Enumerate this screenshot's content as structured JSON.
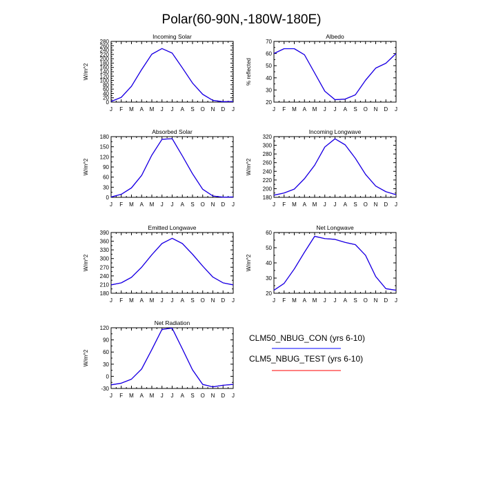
{
  "title": "Polar(60-90N,-180W-180E)",
  "colors": {
    "series_con": "#0000ff",
    "series_test": "#ff0000",
    "frame": "#000000"
  },
  "legend": {
    "entries": [
      {
        "label": "CLM50_NBUG_CON (yrs 6-10)",
        "color": "#0000ff"
      },
      {
        "label": "CLM5_NBUG_TEST (yrs 6-10)",
        "color": "#ff0000"
      }
    ]
  },
  "chart_data": [
    {
      "type": "line",
      "title": "Incoming Solar",
      "ylabel": "W/m^2",
      "categories": [
        "J",
        "F",
        "M",
        "A",
        "M",
        "J",
        "J",
        "A",
        "S",
        "O",
        "N",
        "D",
        "J"
      ],
      "yticks": [
        0,
        20,
        40,
        60,
        80,
        100,
        120,
        140,
        160,
        180,
        200,
        220,
        240,
        260,
        280
      ],
      "ylim": [
        0,
        280
      ],
      "series": [
        {
          "name": "CLM50_NBUG_CON (yrs 6-10)",
          "values": [
            3,
            22,
            73,
            150,
            221,
            247,
            226,
            158,
            88,
            36,
            8,
            2,
            3
          ]
        },
        {
          "name": "CLM5_NBUG_TEST (yrs 6-10)",
          "values": [
            3,
            22,
            73,
            150,
            221,
            247,
            226,
            158,
            88,
            36,
            8,
            2,
            3
          ]
        }
      ]
    },
    {
      "type": "line",
      "title": "Albedo",
      "ylabel": "% reflected",
      "categories": [
        "J",
        "F",
        "M",
        "A",
        "M",
        "J",
        "J",
        "A",
        "S",
        "O",
        "N",
        "D",
        "J"
      ],
      "yticks": [
        20,
        30,
        40,
        50,
        60,
        70
      ],
      "ylim": [
        20,
        70
      ],
      "series": [
        {
          "name": "CLM50_NBUG_CON (yrs 6-10)",
          "values": [
            60,
            64,
            64,
            59,
            44,
            29,
            22,
            22.5,
            26,
            38,
            48,
            52,
            60
          ]
        },
        {
          "name": "CLM5_NBUG_TEST (yrs 6-10)",
          "values": [
            60,
            64,
            64,
            59,
            44,
            29,
            22,
            22.5,
            26,
            38,
            48,
            52,
            60
          ]
        }
      ]
    },
    {
      "type": "line",
      "title": "Absorbed Solar",
      "ylabel": "W/m^2",
      "categories": [
        "J",
        "F",
        "M",
        "A",
        "M",
        "J",
        "J",
        "A",
        "S",
        "O",
        "N",
        "D",
        "J"
      ],
      "yticks": [
        0,
        30,
        60,
        90,
        120,
        150,
        180
      ],
      "ylim": [
        0,
        180
      ],
      "series": [
        {
          "name": "CLM50_NBUG_CON (yrs 6-10)",
          "values": [
            1,
            9,
            28,
            65,
            125,
            172,
            174,
            123,
            70,
            24,
            4,
            0.5,
            1
          ]
        },
        {
          "name": "CLM5_NBUG_TEST (yrs 6-10)",
          "values": [
            1,
            9,
            28,
            65,
            125,
            172,
            174,
            123,
            70,
            24,
            4,
            0.5,
            1
          ]
        }
      ]
    },
    {
      "type": "line",
      "title": "Incoming Longwave",
      "ylabel": "W/m^2",
      "categories": [
        "J",
        "F",
        "M",
        "A",
        "M",
        "J",
        "J",
        "A",
        "S",
        "O",
        "N",
        "D",
        "J"
      ],
      "yticks": [
        180,
        200,
        220,
        240,
        260,
        280,
        300,
        320
      ],
      "ylim": [
        180,
        320
      ],
      "series": [
        {
          "name": "CLM50_NBUG_CON (yrs 6-10)",
          "values": [
            185,
            190,
            199,
            223,
            254,
            296,
            315,
            301,
            270,
            233,
            206,
            193,
            186
          ]
        },
        {
          "name": "CLM5_NBUG_TEST (yrs 6-10)",
          "values": [
            185,
            190,
            199,
            223,
            254,
            296,
            315,
            301,
            270,
            233,
            206,
            193,
            186
          ]
        }
      ]
    },
    {
      "type": "line",
      "title": "Emitted Longwave",
      "ylabel": "W/m^2",
      "categories": [
        "J",
        "F",
        "M",
        "A",
        "M",
        "J",
        "J",
        "A",
        "S",
        "O",
        "N",
        "D",
        "J"
      ],
      "yticks": [
        180,
        210,
        240,
        270,
        300,
        330,
        360,
        390
      ],
      "ylim": [
        180,
        390
      ],
      "series": [
        {
          "name": "CLM50_NBUG_CON (yrs 6-10)",
          "values": [
            209,
            216,
            235,
            270,
            313,
            352,
            370,
            352,
            315,
            274,
            236,
            216,
            209
          ]
        },
        {
          "name": "CLM5_NBUG_TEST (yrs 6-10)",
          "values": [
            209,
            216,
            235,
            270,
            313,
            352,
            370,
            352,
            315,
            274,
            236,
            216,
            209
          ]
        }
      ]
    },
    {
      "type": "line",
      "title": "Net Longwave",
      "ylabel": "W/m^2",
      "categories": [
        "J",
        "F",
        "M",
        "A",
        "M",
        "J",
        "J",
        "A",
        "S",
        "O",
        "N",
        "D",
        "J"
      ],
      "yticks": [
        20,
        30,
        40,
        50,
        60
      ],
      "ylim": [
        20,
        60
      ],
      "series": [
        {
          "name": "CLM50_NBUG_CON (yrs 6-10)",
          "values": [
            22,
            26.5,
            36,
            47,
            57.5,
            56,
            55.5,
            53.5,
            52,
            45,
            31,
            23,
            22
          ]
        },
        {
          "name": "CLM5_NBUG_TEST (yrs 6-10)",
          "values": [
            22,
            26.5,
            36,
            47,
            57.5,
            56,
            55.5,
            53.5,
            52,
            45,
            31,
            23,
            22
          ]
        }
      ]
    },
    {
      "type": "line",
      "title": "Net Radiation",
      "ylabel": "W/m^2",
      "categories": [
        "J",
        "F",
        "M",
        "A",
        "M",
        "J",
        "J",
        "A",
        "S",
        "O",
        "N",
        "D",
        "J"
      ],
      "yticks": [
        -30,
        0,
        30,
        60,
        90,
        120
      ],
      "ylim": [
        -30,
        120
      ],
      "series": [
        {
          "name": "CLM50_NBUG_CON (yrs 6-10)",
          "values": [
            -21,
            -17,
            -7,
            18,
            66,
            116,
            119,
            68,
            16,
            -20,
            -26,
            -22,
            -20
          ]
        },
        {
          "name": "CLM5_NBUG_TEST (yrs 6-10)",
          "values": [
            -21,
            -17,
            -7,
            18,
            66,
            116,
            119,
            68,
            16,
            -20,
            -26,
            -22,
            -20
          ]
        }
      ]
    }
  ]
}
